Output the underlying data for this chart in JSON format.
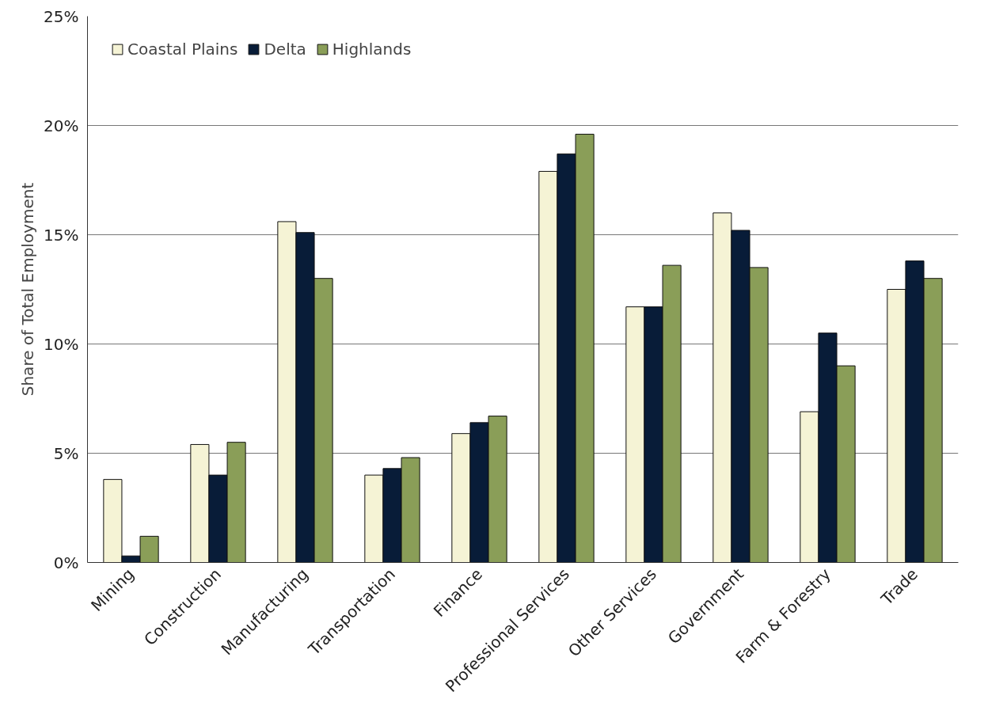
{
  "chart_data": {
    "type": "bar",
    "ylabel": "Share of Total Employment",
    "categories": [
      "Mining",
      "Construction",
      "Manufacturing",
      "Transportation",
      "Finance",
      "Professional Services",
      "Other Services",
      "Government",
      "Farm & Forestry",
      "Trade"
    ],
    "series": [
      {
        "name": "Coastal Plains",
        "color": "#f5f3d5",
        "values": [
          3.8,
          5.4,
          15.6,
          4.0,
          5.9,
          17.9,
          11.7,
          16.0,
          6.9,
          12.5
        ]
      },
      {
        "name": "Delta",
        "color": "#081c38",
        "values": [
          0.3,
          4.0,
          15.1,
          4.3,
          6.4,
          18.7,
          11.7,
          15.2,
          10.5,
          13.8
        ]
      },
      {
        "name": "Highlands",
        "color": "#8a9e58",
        "values": [
          1.2,
          5.5,
          13.0,
          4.8,
          6.7,
          19.6,
          13.6,
          13.5,
          9.0,
          13.0
        ]
      }
    ],
    "ylim": [
      0,
      25
    ],
    "yticks": [
      {
        "value": 0,
        "label": "0%"
      },
      {
        "value": 5,
        "label": "5%"
      },
      {
        "value": 10,
        "label": "10%"
      },
      {
        "value": 15,
        "label": "15%"
      },
      {
        "value": 20,
        "label": "20%"
      },
      {
        "value": 25,
        "label": "25%"
      }
    ],
    "grid": "y",
    "legend": "top left"
  }
}
